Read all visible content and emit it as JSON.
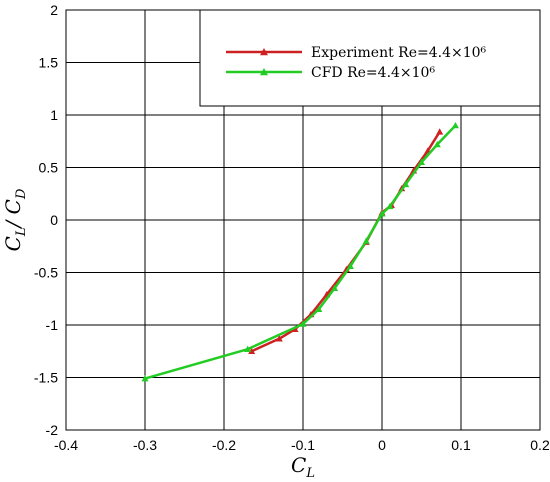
{
  "chart_data": {
    "type": "line",
    "xlabel": {
      "main": "C",
      "sub": "L"
    },
    "ylabel": {
      "main1": "C",
      "sub1": "L",
      "sep": "/ ",
      "main2": "C",
      "sub2": "D"
    },
    "xlim": [
      -0.4,
      0.2
    ],
    "ylim": [
      -2,
      2
    ],
    "xticks": [
      -0.4,
      -0.3,
      -0.2,
      -0.1,
      0,
      0.1,
      0.2
    ],
    "yticks": [
      -2,
      -1.5,
      -1,
      -0.5,
      0,
      0.5,
      1,
      1.5,
      2
    ],
    "xtick_labels": [
      "-0.4",
      "-0.3",
      "-0.2",
      "-0.1",
      "0",
      "0.1",
      "0.2"
    ],
    "ytick_labels": [
      "-2",
      "-1.5",
      "-1",
      "-0.5",
      "0",
      "0.5",
      "1",
      "1.5",
      "2"
    ],
    "grid": true,
    "legend_position": "top-right",
    "series": [
      {
        "name": "Experiment Re=4.4×10⁶",
        "color": "#cc2222",
        "marker": "triangle",
        "x": [
          -0.165,
          -0.13,
          -0.11,
          -0.09,
          -0.07,
          -0.045,
          -0.02,
          0.0,
          0.012,
          0.025,
          0.04,
          0.058,
          0.073
        ],
        "y": [
          -1.25,
          -1.13,
          -1.04,
          -0.9,
          -0.71,
          -0.47,
          -0.21,
          0.07,
          0.14,
          0.3,
          0.47,
          0.66,
          0.84
        ]
      },
      {
        "name": "CFD Re=4.4×10⁶",
        "color": "#22cc22",
        "marker": "triangle",
        "x": [
          -0.3,
          -0.17,
          -0.1,
          -0.08,
          -0.06,
          -0.04,
          -0.02,
          0.0,
          0.01,
          0.03,
          0.05,
          0.07,
          0.093
        ],
        "y": [
          -1.51,
          -1.23,
          -0.99,
          -0.85,
          -0.65,
          -0.44,
          -0.2,
          0.06,
          0.13,
          0.34,
          0.55,
          0.72,
          0.9
        ]
      }
    ]
  }
}
